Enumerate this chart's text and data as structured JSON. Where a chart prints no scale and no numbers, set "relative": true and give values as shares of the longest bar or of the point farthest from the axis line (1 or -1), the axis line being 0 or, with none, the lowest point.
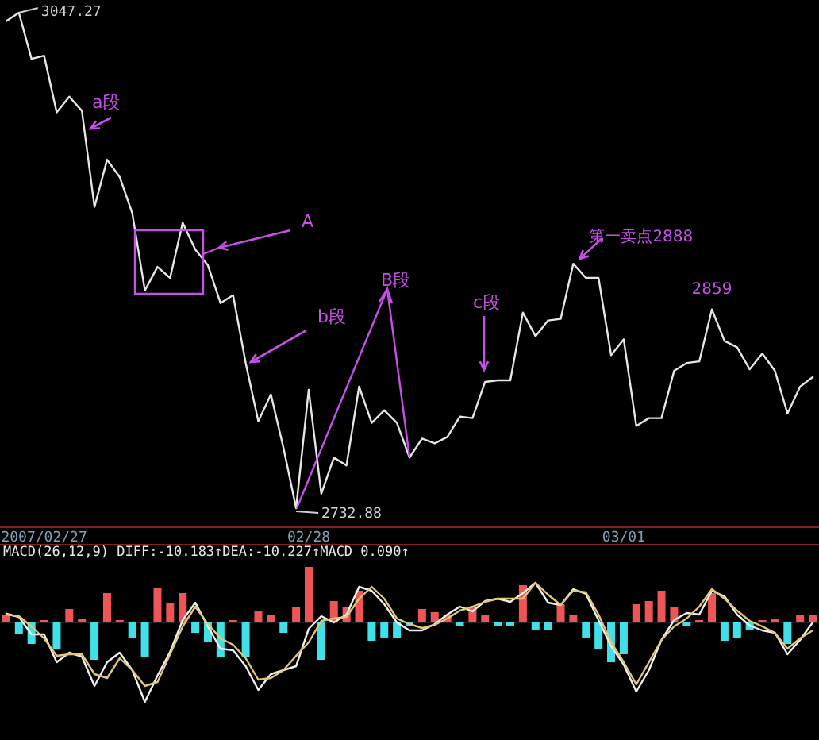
{
  "chart_data": [
    {
      "type": "line",
      "tick_labels": "x",
      "categories": [
        null,
        null,
        null,
        "2007/02/27",
        null,
        null,
        null,
        null,
        null,
        null,
        null,
        null,
        null,
        null,
        null,
        null,
        null,
        null,
        null,
        null,
        null,
        null,
        null,
        null,
        "02/28",
        null,
        null,
        null,
        null,
        null,
        null,
        null,
        null,
        null,
        null,
        null,
        null,
        null,
        null,
        null,
        null,
        null,
        null,
        null,
        null,
        null,
        null,
        null,
        null,
        "03/01",
        null,
        null,
        null,
        null,
        null,
        null,
        null,
        null,
        null,
        null,
        null,
        null,
        null,
        null,
        null
      ],
      "series": [
        {
          "color": "#e6e6e6",
          "values": [
            3042,
            3047.27,
            3018,
            3020,
            2984,
            2994,
            2985,
            2924,
            2954,
            2943,
            2920,
            2871,
            2886,
            2879,
            2914,
            2897,
            2887,
            2863,
            2868,
            2825,
            2788,
            2805,
            2771,
            2732.88,
            2808,
            2742,
            2765,
            2760,
            2810,
            2787,
            2795,
            2787,
            2765,
            2777,
            2774,
            2778,
            2791,
            2790,
            2813,
            2814,
            2814,
            2857,
            2842,
            2852,
            2853,
            2888,
            2879,
            2879,
            2830,
            2840,
            2785,
            2790,
            2790,
            2820,
            2825,
            2826,
            2859,
            2839,
            2835,
            2821,
            2831,
            2820,
            2793,
            2810,
            2816
          ],
          "value_labels": [
            null,
            "3047.27",
            null,
            null,
            null,
            null,
            null,
            null,
            null,
            null,
            null,
            null,
            null,
            null,
            null,
            null,
            null,
            null,
            null,
            null,
            null,
            null,
            null,
            "2732.88",
            null,
            null,
            null,
            null,
            null,
            null,
            null,
            null,
            null,
            null,
            null,
            null,
            null,
            null,
            null,
            null,
            null,
            null,
            null,
            null,
            null,
            "第一卖点2888",
            null,
            null,
            null,
            null,
            null,
            null,
            null,
            null,
            null,
            null,
            "2859",
            null,
            null,
            null,
            null,
            null,
            null,
            null,
            null
          ]
        }
      ],
      "annotations": [
        "a段",
        "A",
        "b段",
        "B段",
        "c段"
      ]
    },
    {
      "type": "bar",
      "relative": true,
      "tick_labels": false,
      "categories": [
        null,
        null,
        null,
        null,
        null,
        null,
        null,
        null,
        null,
        null,
        null,
        null,
        null,
        null,
        null,
        null,
        null,
        null,
        null,
        null,
        null,
        null,
        null,
        null,
        null,
        null,
        null,
        null,
        null,
        null,
        null,
        null,
        null,
        null,
        null,
        null,
        null,
        null,
        null,
        null,
        null,
        null,
        null,
        null,
        null,
        null,
        null,
        null,
        null,
        null,
        null,
        null,
        null,
        null,
        null,
        null,
        null,
        null,
        null,
        null,
        null,
        null,
        null,
        null,
        null
      ],
      "title": "MACD(26,12,9) DIFF:-10.183↑DEA:-10.227↑MACD 0.090↑",
      "series": [
        {
          "color": "#f05555",
          "values": [
            0.1,
            -0.15,
            -0.27,
            0.03,
            -0.33,
            0.17,
            0.05,
            -0.47,
            0.37,
            0.03,
            -0.2,
            -0.43,
            0.43,
            0.25,
            0.37,
            -0.13,
            -0.25,
            -0.43,
            0.03,
            -0.43,
            0.15,
            0.1,
            -0.13,
            0.2,
            0.7,
            -0.47,
            0.27,
            0.2,
            0.4,
            -0.23,
            -0.2,
            -0.2,
            -0.05,
            0.17,
            0.13,
            0.1,
            -0.05,
            0.2,
            0.1,
            -0.05,
            -0.05,
            0.47,
            -0.1,
            -0.1,
            0.23,
            0.1,
            -0.2,
            -0.33,
            -0.5,
            -0.4,
            0.23,
            0.27,
            0.4,
            0.2,
            -0.05,
            0.03,
            0.37,
            -0.23,
            -0.2,
            -0.1,
            0.03,
            0.05,
            -0.27,
            0.1,
            0.1
          ],
          "colors": [
            null,
            "#40e0e8",
            "#40e0e8",
            null,
            "#40e0e8",
            null,
            null,
            "#40e0e8",
            null,
            null,
            "#40e0e8",
            "#40e0e8",
            null,
            null,
            null,
            "#40e0e8",
            "#40e0e8",
            "#40e0e8",
            null,
            "#40e0e8",
            null,
            null,
            "#40e0e8",
            null,
            null,
            "#40e0e8",
            null,
            null,
            null,
            "#40e0e8",
            "#40e0e8",
            "#40e0e8",
            "#40e0e8",
            null,
            null,
            null,
            "#40e0e8",
            null,
            null,
            "#40e0e8",
            "#40e0e8",
            null,
            "#40e0e8",
            "#40e0e8",
            null,
            null,
            "#40e0e8",
            "#40e0e8",
            "#40e0e8",
            "#40e0e8",
            null,
            null,
            null,
            null,
            "#40e0e8",
            null,
            null,
            "#40e0e8",
            "#40e0e8",
            "#40e0e8",
            null,
            null,
            "#40e0e8",
            null,
            null
          ]
        },
        {
          "type": "line",
          "color": "#f0f0f0",
          "values": [
            0.11,
            0.07,
            -0.15,
            -0.15,
            -0.5,
            -0.38,
            -0.43,
            -0.8,
            -0.5,
            -0.38,
            -0.6,
            -1,
            -0.67,
            -0.37,
            0.03,
            0.25,
            -0.05,
            -0.33,
            -0.35,
            -0.55,
            -0.85,
            -0.65,
            -0.6,
            -0.55,
            -0.08,
            0.08,
            0,
            0.1,
            0.45,
            0.4,
            0.23,
            0,
            -0.1,
            -0.1,
            -0.02,
            0.1,
            0.2,
            0.14,
            0.27,
            0.3,
            0.26,
            0.37,
            0.5,
            0.25,
            0.22,
            0.42,
            0.36,
            0.03,
            -0.3,
            -0.53,
            -0.87,
            -0.6,
            -0.22,
            0.03,
            0.12,
            0.1,
            0.4,
            0.33,
            0.1,
            -0.04,
            -0.1,
            -0.13,
            -0.4,
            -0.22,
            0
          ]
        },
        {
          "type": "line",
          "color": "#e0c878",
          "values": [
            0.1,
            0.08,
            -0.05,
            -0.2,
            -0.42,
            -0.4,
            -0.4,
            -0.65,
            -0.7,
            -0.45,
            -0.6,
            -0.8,
            -0.75,
            -0.4,
            -0.05,
            0.2,
            -0.02,
            -0.2,
            -0.28,
            -0.45,
            -0.72,
            -0.7,
            -0.6,
            -0.42,
            -0.25,
            0.02,
            0.05,
            0.07,
            0.3,
            0.45,
            0.3,
            0.05,
            -0.02,
            -0.07,
            -0.03,
            0.05,
            0.15,
            0.2,
            0.26,
            0.3,
            0.3,
            0.3,
            0.5,
            0.35,
            0.22,
            0.4,
            0.38,
            0.1,
            -0.25,
            -0.5,
            -0.78,
            -0.5,
            -0.22,
            -0.05,
            0.05,
            0.2,
            0.42,
            0.3,
            0.15,
            0.02,
            -0.05,
            -0.13,
            -0.33,
            -0.2,
            -0.1
          ]
        }
      ]
    }
  ]
}
